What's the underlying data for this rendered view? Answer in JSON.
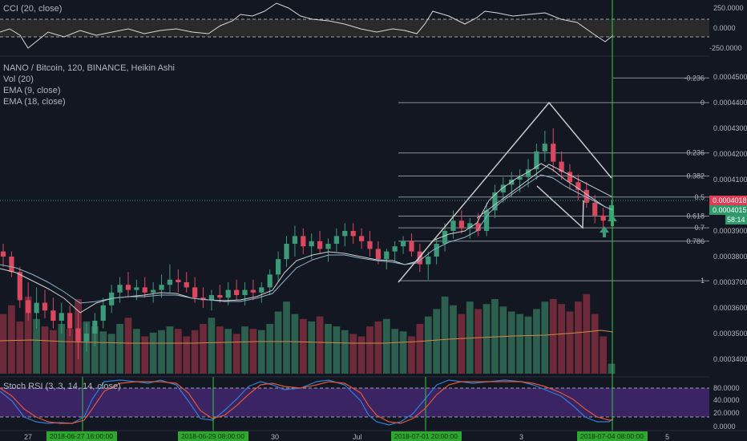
{
  "colors": {
    "background": "#131722",
    "up": "#3c9a78",
    "down": "#d9485f",
    "vol_up": "#2c5f4d",
    "vol_down": "#6e2a38",
    "pattern": "#c9c9c9",
    "fib": "#8a8f99",
    "ema9": "#d0d0d0",
    "ema18": "#8fb4c7",
    "volma": "#d08a4a",
    "rsi_k": "#2f7ed8",
    "rsi_d": "#e2553a",
    "rsi_band": "#4a2a7a",
    "cci_line": "#d8d8d8",
    "vline": "#2ecc40",
    "last_price_bg": "#e23c55",
    "countdown_bg": "#2e9a6c",
    "date_box_bg": "#2ea82f"
  },
  "cci_pane": {
    "legend": "CCI (20, close)",
    "axis_labels": [
      "250.0000",
      "0.0000",
      "-250.0000"
    ],
    "axis_values": [
      250,
      0,
      -250
    ]
  },
  "main_pane": {
    "legend": [
      "NANO / Bitcoin, 120, BINANCE, Heikin Ashi",
      "Vol (20)",
      "EMA (9, close)",
      "EMA (18, close)"
    ],
    "axis_labels": [
      "0.0004500",
      "0.0004400",
      "0.0004300",
      "0.0004200",
      "0.0004100",
      "0.0003900",
      "0.0003800",
      "0.0003700",
      "0.0003600",
      "0.0003500",
      "0.0003400"
    ],
    "axis_values": [
      0.00045,
      0.00044,
      0.00043,
      0.00042,
      0.00041,
      0.00039,
      0.00038,
      0.00037,
      0.00036,
      0.00035,
      0.00034
    ],
    "last_price": "0.0004018",
    "second_price": "0.0004015",
    "countdown": "58:14",
    "fib_levels": [
      {
        "label": "-0.236",
        "price": 0.0004496
      },
      {
        "label": "0",
        "price": 0.00044
      },
      {
        "label": "0.236",
        "price": 0.0004204
      },
      {
        "label": "0.382",
        "price": 0.0004114
      },
      {
        "label": "0.5",
        "price": 0.0004032
      },
      {
        "label": "0.618",
        "price": 0.0003958
      },
      {
        "label": "0.7",
        "price": 0.0003912
      },
      {
        "label": "0.786",
        "price": 0.000386
      },
      {
        "label": "1",
        "price": 0.0003706
      }
    ]
  },
  "rsi_pane": {
    "legend": "Stoch RSI (3, 3, 14, 14, close)",
    "axis_labels": [
      "80.0000",
      "40.0000",
      "20.0000",
      "0.0000"
    ],
    "axis_values": [
      80,
      40,
      20,
      0
    ]
  },
  "time_axis": {
    "labels": [
      "27",
      "30",
      "Jul",
      "3",
      "5"
    ],
    "date_boxes": [
      "2018-06-27 16:00:00",
      "2018-06-29 08:00:00",
      "2018-07-01 20:00:00",
      "2018-07-04 08:00:00"
    ]
  },
  "chart_data": {
    "type": "candlestick",
    "title": "NANO / Bitcoin, 120, BINANCE, Heikin Ashi",
    "y_range": [
      0.000335,
      0.000455
    ],
    "candles": [
      [
        0.000382,
        0.000385,
        0.000376,
        0.00038
      ],
      [
        0.00038,
        0.000382,
        0.000372,
        0.000374
      ],
      [
        0.000374,
        0.000376,
        0.00036,
        0.000363
      ],
      [
        0.000363,
        0.00037,
        0.000355,
        0.000358
      ],
      [
        0.000358,
        0.000368,
        0.000352,
        0.000362
      ],
      [
        0.000362,
        0.000367,
        0.000356,
        0.000359
      ],
      [
        0.000359,
        0.000364,
        0.000352,
        0.000355
      ],
      [
        0.000355,
        0.000362,
        0.00035,
        0.000358
      ],
      [
        0.000358,
        0.000361,
        0.000349,
        0.000352
      ],
      [
        0.000352,
        0.000358,
        0.00034,
        0.000347
      ],
      [
        0.000347,
        0.000354,
        0.000343,
        0.00035
      ],
      [
        0.00035,
        0.000358,
        0.000345,
        0.000355
      ],
      [
        0.000355,
        0.000364,
        0.000352,
        0.000361
      ],
      [
        0.000361,
        0.000369,
        0.000358,
        0.000366
      ],
      [
        0.000366,
        0.000372,
        0.000362,
        0.000369
      ],
      [
        0.000369,
        0.000374,
        0.000364,
        0.000367
      ],
      [
        0.000367,
        0.000371,
        0.000363,
        0.000368
      ],
      [
        0.000368,
        0.000372,
        0.000364,
        0.000366
      ],
      [
        0.000366,
        0.00037,
        0.000362,
        0.000367
      ],
      [
        0.000367,
        0.000373,
        0.000364,
        0.000369
      ],
      [
        0.000369,
        0.000377,
        0.000366,
        0.000371
      ],
      [
        0.000371,
        0.000375,
        0.000366,
        0.00037
      ],
      [
        0.00037,
        0.000374,
        0.000366,
        0.000368
      ],
      [
        0.000368,
        0.000372,
        0.000362,
        0.000364
      ],
      [
        0.000364,
        0.000368,
        0.00036,
        0.000363
      ],
      [
        0.000363,
        0.000367,
        0.000359,
        0.000365
      ],
      [
        0.000365,
        0.000369,
        0.000362,
        0.000364
      ],
      [
        0.000364,
        0.00037,
        0.000361,
        0.000367
      ],
      [
        0.000367,
        0.000371,
        0.000363,
        0.000365
      ],
      [
        0.000365,
        0.00037,
        0.000361,
        0.000367
      ],
      [
        0.000367,
        0.000371,
        0.000363,
        0.000366
      ],
      [
        0.000366,
        0.00037,
        0.000362,
        0.000368
      ],
      [
        0.000368,
        0.000375,
        0.000365,
        0.000373
      ],
      [
        0.000373,
        0.000382,
        0.00037,
        0.000379
      ],
      [
        0.000379,
        0.000388,
        0.000376,
        0.000385
      ],
      [
        0.000385,
        0.000392,
        0.00038,
        0.000388
      ],
      [
        0.000388,
        0.000391,
        0.000381,
        0.000384
      ],
      [
        0.000384,
        0.000389,
        0.000379,
        0.000386
      ],
      [
        0.000386,
        0.00039,
        0.000381,
        0.000383
      ],
      [
        0.000383,
        0.000387,
        0.000378,
        0.000385
      ],
      [
        0.000385,
        0.000391,
        0.000382,
        0.000388
      ],
      [
        0.000388,
        0.000393,
        0.000384,
        0.00039
      ],
      [
        0.00039,
        0.000393,
        0.000385,
        0.000388
      ],
      [
        0.000388,
        0.000391,
        0.000383,
        0.000386
      ],
      [
        0.000386,
        0.00039,
        0.00038,
        0.000383
      ],
      [
        0.000383,
        0.000386,
        0.000377,
        0.000379
      ],
      [
        0.000379,
        0.000383,
        0.000375,
        0.000382
      ],
      [
        0.000382,
        0.000386,
        0.000378,
        0.000384
      ],
      [
        0.000384,
        0.000388,
        0.000381,
        0.000386
      ],
      [
        0.000386,
        0.000389,
        0.00038,
        0.000382
      ],
      [
        0.000382,
        0.000385,
        0.000374,
        0.000377
      ],
      [
        0.000377,
        0.000382,
        0.000371,
        0.00038
      ],
      [
        0.00038,
        0.000387,
        0.000377,
        0.000385
      ],
      [
        0.000385,
        0.000393,
        0.000382,
        0.00039
      ],
      [
        0.00039,
        0.000398,
        0.000387,
        0.000394
      ],
      [
        0.000394,
        0.000398,
        0.000389,
        0.000391
      ],
      [
        0.000391,
        0.000395,
        0.000387,
        0.000393
      ],
      [
        0.000393,
        0.000397,
        0.000388,
        0.00039
      ],
      [
        0.00039,
        0.000401,
        0.000388,
        0.000398
      ],
      [
        0.000398,
        0.000408,
        0.000395,
        0.000405
      ],
      [
        0.000405,
        0.000411,
        0.000401,
        0.000408
      ],
      [
        0.000408,
        0.000413,
        0.000403,
        0.00041
      ],
      [
        0.00041,
        0.000414,
        0.000405,
        0.000411
      ],
      [
        0.000411,
        0.000418,
        0.000407,
        0.000414
      ],
      [
        0.000414,
        0.000424,
        0.00041,
        0.000421
      ],
      [
        0.000421,
        0.000429,
        0.000417,
        0.000424
      ],
      [
        0.000424,
        0.00043,
        0.000413,
        0.000417
      ],
      [
        0.000417,
        0.000421,
        0.00041,
        0.000413
      ],
      [
        0.000413,
        0.000416,
        0.000406,
        0.000409
      ],
      [
        0.000409,
        0.000412,
        0.000402,
        0.000406
      ],
      [
        0.000406,
        0.000409,
        0.000399,
        0.000401
      ],
      [
        0.000401,
        0.000404,
        0.000393,
        0.000396
      ],
      [
        0.000396,
        0.000399,
        0.000391,
        0.000394
      ],
      [
        0.000394,
        0.000402,
        0.000392,
        0.0004
      ]
    ],
    "volume": [
      48,
      55,
      42,
      62,
      44,
      38,
      35,
      40,
      36,
      60,
      42,
      38,
      34,
      32,
      40,
      45,
      36,
      30,
      33,
      35,
      38,
      36,
      30,
      35,
      40,
      45,
      38,
      36,
      32,
      38,
      36,
      35,
      40,
      50,
      58,
      48,
      44,
      42,
      46,
      40,
      38,
      35,
      32,
      30,
      38,
      42,
      44,
      36,
      34,
      30,
      40,
      46,
      52,
      62,
      55,
      48,
      58,
      52,
      56,
      60,
      54,
      50,
      48,
      46,
      52,
      58,
      60,
      56,
      50,
      58,
      64,
      48,
      30,
      8
    ],
    "volume_up_flags": [
      0,
      0,
      0,
      0,
      1,
      0,
      0,
      1,
      0,
      0,
      1,
      1,
      1,
      1,
      1,
      0,
      1,
      0,
      1,
      1,
      1,
      0,
      0,
      0,
      0,
      1,
      0,
      1,
      0,
      1,
      0,
      1,
      1,
      1,
      1,
      1,
      0,
      1,
      0,
      1,
      1,
      1,
      0,
      0,
      0,
      0,
      1,
      1,
      1,
      0,
      0,
      1,
      1,
      1,
      1,
      0,
      1,
      0,
      1,
      1,
      1,
      1,
      1,
      1,
      1,
      1,
      0,
      0,
      0,
      0,
      0,
      0,
      0,
      1
    ]
  }
}
